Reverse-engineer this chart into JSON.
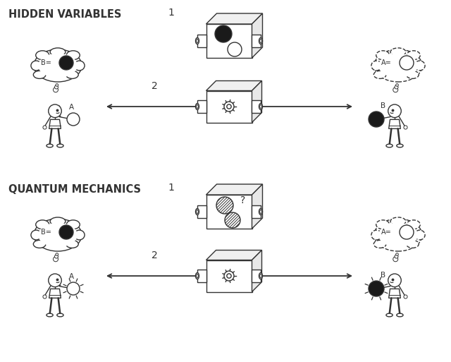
{
  "title_hv": "HIDDEN VARIABLES",
  "title_qm": "QUANTUM MECHANICS",
  "label_1": "1",
  "label_2": "2",
  "label_A": "A",
  "label_B": "B",
  "bg_color": "#ffffff",
  "line_color": "#333333",
  "fill_black": "#1a1a1a",
  "fill_white": "#ffffff",
  "fill_gray": "#bbbbbb",
  "lw": 1.0,
  "fig_w": 6.4,
  "fig_h": 5.13,
  "dpi": 100
}
